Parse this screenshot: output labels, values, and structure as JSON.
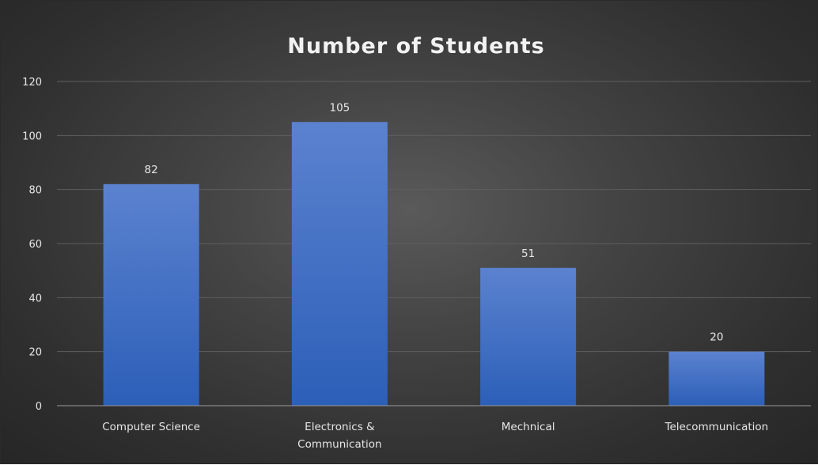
{
  "chart_data": {
    "type": "bar",
    "title": "Number of Students",
    "categories": [
      "Computer Science",
      "Electronics & Communication",
      "Mechnical",
      "Telecommunication"
    ],
    "category_lines": [
      [
        "Computer Science"
      ],
      [
        "Electronics &",
        "Communication"
      ],
      [
        "Mechnical"
      ],
      [
        "Telecommunication"
      ]
    ],
    "values": [
      82,
      105,
      51,
      20
    ],
    "data_labels": [
      "82",
      "105",
      "51",
      "20"
    ],
    "y_ticks": [
      "0",
      "20",
      "40",
      "60",
      "80",
      "100",
      "120"
    ],
    "ylim": [
      0,
      120
    ],
    "ytick_step": 20,
    "xlabel": "",
    "ylabel": "",
    "grid": true,
    "legend": "none",
    "colors": {
      "bar_top": "#5b82cf",
      "bar_bottom": "#2c5fb8",
      "background": "#3d3d3d"
    }
  }
}
